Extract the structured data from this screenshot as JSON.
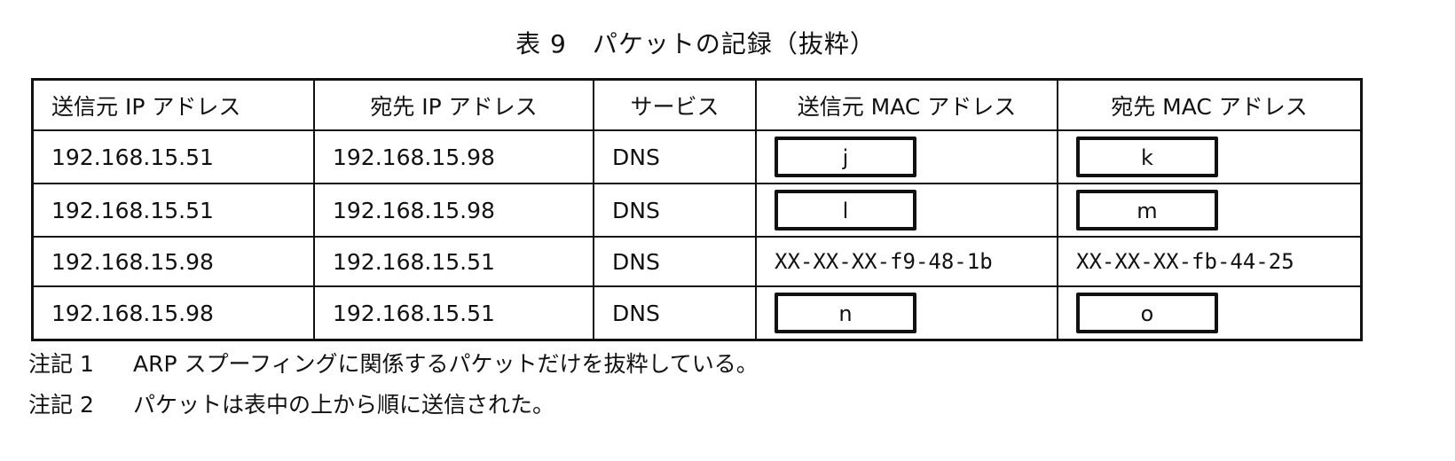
{
  "title": "表 9　パケットの記録（抜粋）",
  "table": {
    "headers": [
      "送信元 IP アドレス",
      "宛先 IP アドレス",
      "サービス",
      "送信元 MAC アドレス",
      "宛先 MAC アドレス"
    ],
    "rows": [
      {
        "src_ip": "192.168.15.51",
        "dst_ip": "192.168.15.98",
        "service": "DNS",
        "src_mac": "j",
        "dst_mac": "k"
      },
      {
        "src_ip": "192.168.15.51",
        "dst_ip": "192.168.15.98",
        "service": "DNS",
        "src_mac": "l",
        "dst_mac": "m"
      },
      {
        "src_ip": "192.168.15.98",
        "dst_ip": "192.168.15.51",
        "service": "DNS",
        "src_mac": "XX-XX-XX-f9-48-1b",
        "dst_mac": "XX-XX-XX-fb-44-25"
      },
      {
        "src_ip": "192.168.15.98",
        "dst_ip": "192.168.15.51",
        "service": "DNS",
        "src_mac": "n",
        "dst_mac": "o"
      }
    ]
  },
  "notes": [
    {
      "label": "注記 1",
      "text": "ARP スプーフィングに関係するパケットだけを抜粋している。"
    },
    {
      "label": "注記 2",
      "text": "パケットは表中の上から順に送信された。"
    }
  ]
}
